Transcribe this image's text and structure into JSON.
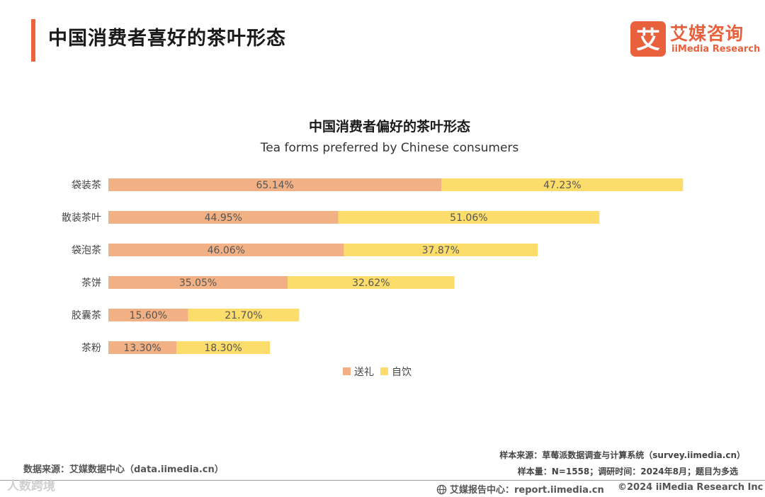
{
  "header": {
    "title": "中国消费者喜好的茶叶形态",
    "accent_color": "#f0643c"
  },
  "logo": {
    "mark_char": "艾",
    "name_cn": "艾媒咨询",
    "name_en": "iiMedia Research",
    "color": "#e8603c"
  },
  "chart_data": {
    "type": "bar",
    "orientation": "horizontal",
    "stacked": true,
    "title": "中国消费者偏好的茶叶形态",
    "subtitle": "Tea forms preferred by Chinese consumers",
    "categories": [
      "袋装茶",
      "散装茶叶",
      "袋泡茶",
      "茶饼",
      "胶囊茶",
      "茶粉"
    ],
    "series": [
      {
        "name": "送礼",
        "color": "#f2b184",
        "values": [
          65.14,
          44.95,
          46.06,
          35.05,
          15.6,
          13.3
        ],
        "labels": [
          "65.14%",
          "44.95%",
          "46.06%",
          "35.05%",
          "15.60%",
          "13.30%"
        ]
      },
      {
        "name": "自饮",
        "color": "#fcdc6a",
        "values": [
          47.23,
          51.06,
          37.87,
          32.62,
          21.7,
          18.3
        ],
        "labels": [
          "47.23%",
          "51.06%",
          "37.87%",
          "32.62%",
          "21.70%",
          "18.30%"
        ]
      }
    ],
    "xlim": [
      0,
      120
    ],
    "grid": false,
    "legend": "bottom-center"
  },
  "footer": {
    "data_source": "数据来源：艾媒数据中心（data.iimedia.cn）",
    "sample_source": "样本来源：草莓派数据调查与计算系统（survey.iimedia.cn）",
    "sample_info": "样本量：N=1558；调研时间：2024年8月；题目为多选",
    "report_center": "艾媒报告中心：report.iimedia.cn",
    "copyright": "©2024  iiMedia Research  Inc",
    "watermark": "人数跨境"
  }
}
